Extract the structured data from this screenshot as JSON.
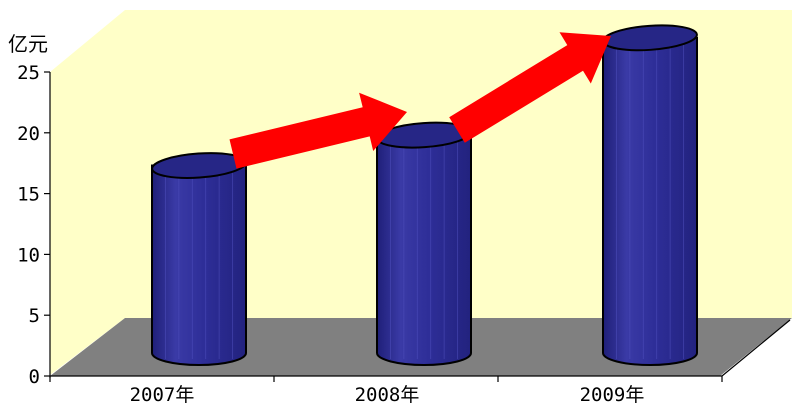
{
  "chart_data": {
    "type": "bar",
    "style": "3d-cylinder",
    "title": "",
    "xlabel": "",
    "ylabel": "亿元",
    "categories": [
      "2007年",
      "2008年",
      "2009年"
    ],
    "values": [
      15.5,
      18,
      26
    ],
    "ylim": [
      0,
      25
    ],
    "yticks": [
      0,
      5,
      10,
      15,
      20,
      25
    ],
    "grid": false,
    "legend": "none",
    "annotations": [
      "arrow-2007-2008",
      "arrow-2008-2009"
    ],
    "colors": {
      "back_wall": "#ffffc8",
      "floor": "#808080",
      "bar_body": "#2c2c94",
      "bar_top": "#262686",
      "arrow": "#ff0000"
    }
  }
}
